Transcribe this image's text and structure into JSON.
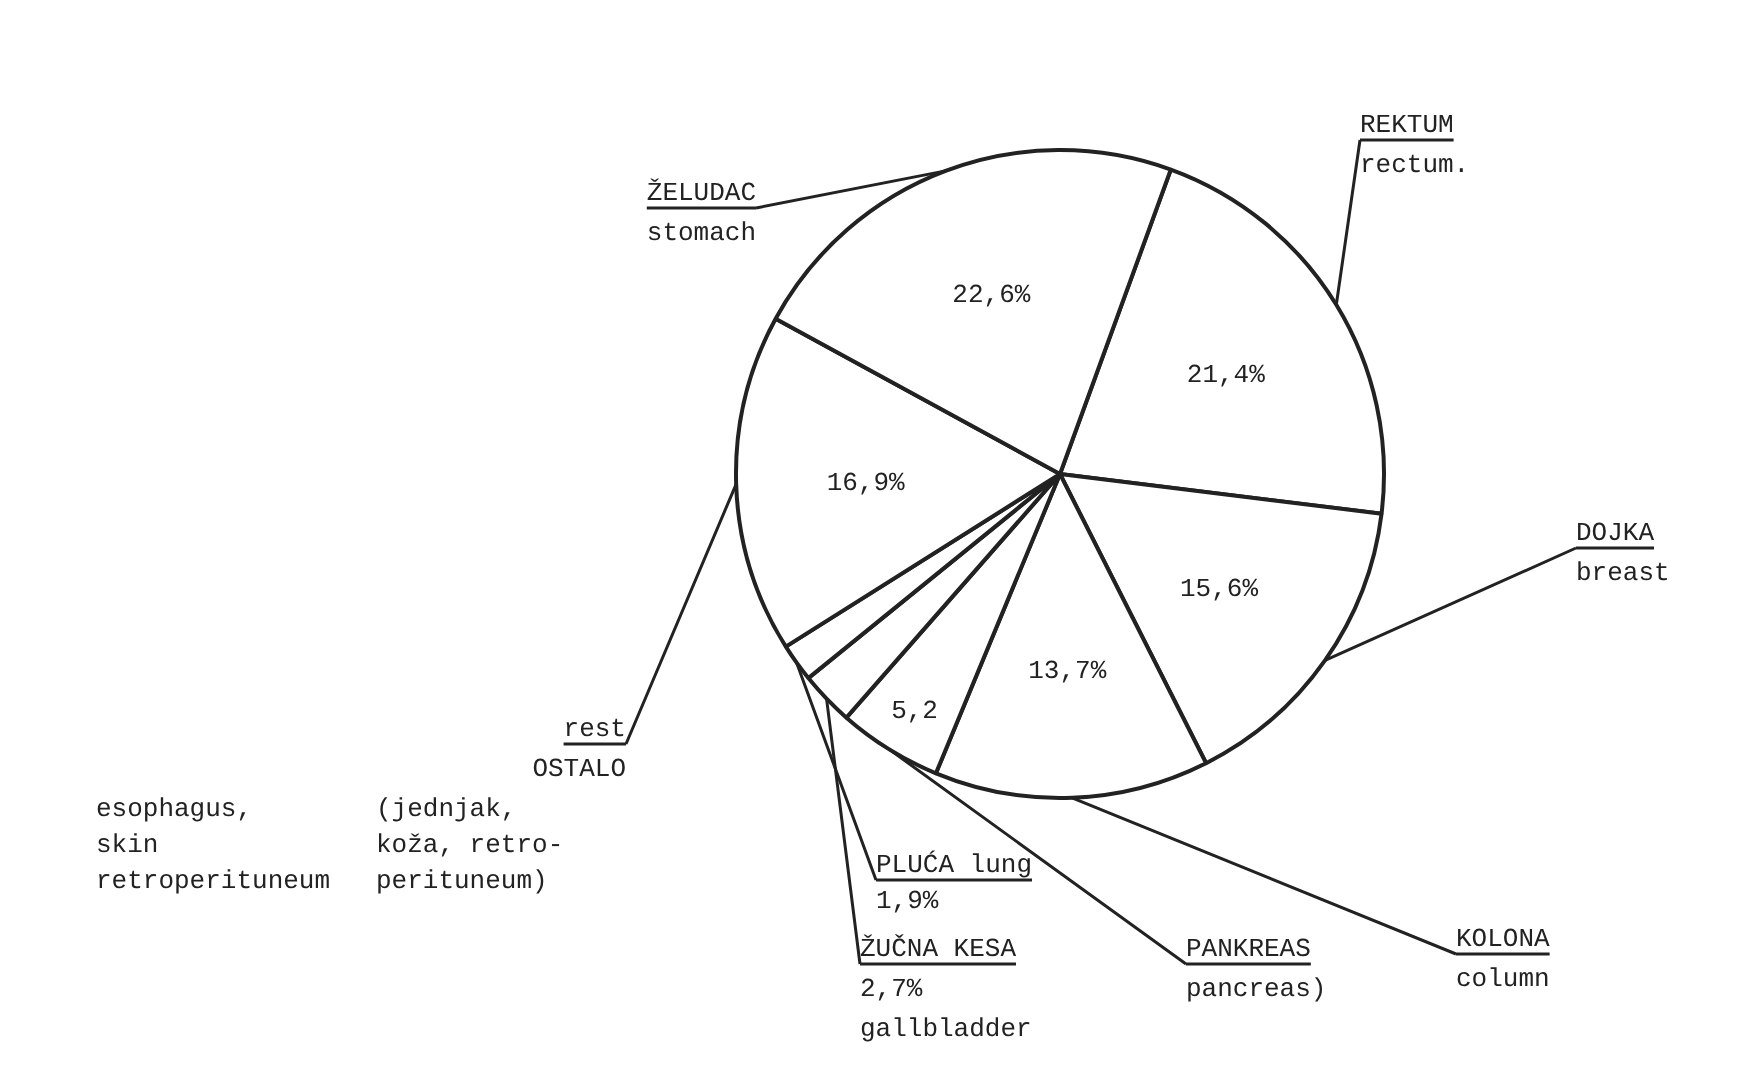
{
  "chart_data": {
    "type": "pie",
    "categories": [
      "REKTUM\nrectum.",
      "DOJKA\nbreast",
      "KOLONA\ncolumn",
      "PANKREAS\npancreas)",
      "ŽUČNA KESA\n\ngallbladder",
      "PLUĆA lung",
      "rest\nOSTALO",
      "ŽELUDAC\nstomach"
    ],
    "values": [
      21.4,
      15.6,
      13.7,
      5.2,
      2.7,
      1.9,
      16.9,
      22.6
    ],
    "value_labels": [
      "21,4%",
      "15,6%",
      "13,7%",
      "5,2",
      "2,7%",
      "1,9%",
      "16,9%",
      "22,6%"
    ],
    "colors": [
      "#ffffff",
      "#ffffff",
      "#ffffff",
      "#ffffff",
      "#ffffff",
      "#ffffff",
      "#ffffff",
      "#ffffff"
    ],
    "annotations": [
      "esophagus, skin retroperituneum",
      "(jednjak, koža, retro- perituneum)"
    ],
    "legend": false
  }
}
